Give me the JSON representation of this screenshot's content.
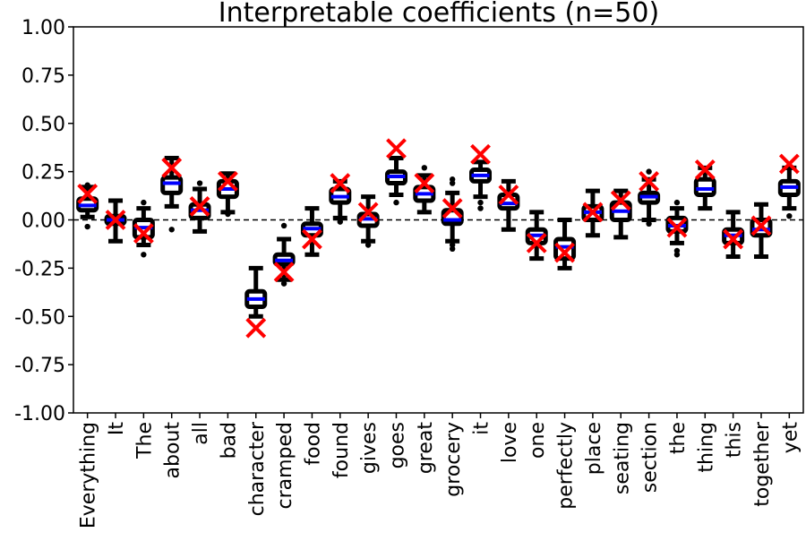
{
  "chart_data": {
    "type": "box",
    "title": "Interpretable coefficients (n=50)",
    "xlabel": "",
    "ylabel": "",
    "ylim": [
      -1.0,
      1.0
    ],
    "yticks": [
      "-1.00",
      "-0.75",
      "-0.50",
      "-0.25",
      "0.00",
      "0.25",
      "0.50",
      "0.75",
      "1.00"
    ],
    "reference_line": 0,
    "grid": false,
    "colors": {
      "box": "#000000",
      "median": "#0000ff",
      "mean": "#ffffff",
      "marker": "#ff0000",
      "reference": "#000000"
    },
    "marker_name": "red x",
    "categories": [
      "Everything",
      "It",
      "The",
      "about",
      "all",
      "bad",
      "character",
      "cramped",
      "food",
      "found",
      "gives",
      "goes",
      "great",
      "grocery",
      "it",
      "love",
      "one",
      "perfectly",
      "place",
      "seating",
      "section",
      "the",
      "thing",
      "this",
      "together",
      "yet"
    ],
    "boxes": [
      {
        "low": 0.015,
        "q1": 0.05,
        "median": 0.075,
        "q3": 0.11,
        "high": 0.17,
        "x_marker": 0.135,
        "outliers": [
          -0.035,
          0.18
        ]
      },
      {
        "low": -0.11,
        "q1": -0.02,
        "median": 0.0,
        "q3": 0.02,
        "high": 0.1,
        "x_marker": 0.0,
        "outliers": []
      },
      {
        "low": -0.13,
        "q1": -0.09,
        "median": -0.04,
        "q3": 0.0,
        "high": 0.06,
        "x_marker": -0.07,
        "outliers": [
          0.09,
          -0.18
        ]
      },
      {
        "low": 0.07,
        "q1": 0.14,
        "median": 0.19,
        "q3": 0.22,
        "high": 0.32,
        "x_marker": 0.27,
        "outliers": [
          -0.05
        ]
      },
      {
        "low": -0.06,
        "q1": 0.01,
        "median": 0.05,
        "q3": 0.08,
        "high": 0.16,
        "x_marker": 0.07,
        "outliers": [
          0.19
        ]
      },
      {
        "low": 0.04,
        "q1": 0.12,
        "median": 0.16,
        "q3": 0.2,
        "high": 0.24,
        "x_marker": 0.2,
        "outliers": [
          0.03
        ]
      },
      {
        "low": -0.5,
        "q1": -0.45,
        "median": -0.41,
        "q3": -0.37,
        "high": -0.25,
        "x_marker": -0.56,
        "outliers": []
      },
      {
        "low": -0.31,
        "q1": -0.23,
        "median": -0.21,
        "q3": -0.18,
        "high": -0.1,
        "x_marker": -0.27,
        "outliers": [
          -0.03,
          -0.33
        ]
      },
      {
        "low": -0.18,
        "q1": -0.08,
        "median": -0.045,
        "q3": -0.02,
        "high": 0.06,
        "x_marker": -0.1,
        "outliers": []
      },
      {
        "low": 0.01,
        "q1": 0.09,
        "median": 0.12,
        "q3": 0.16,
        "high": 0.2,
        "x_marker": 0.19,
        "outliers": [
          -0.01
        ]
      },
      {
        "low": -0.11,
        "q1": -0.03,
        "median": 0.005,
        "q3": 0.03,
        "high": 0.12,
        "x_marker": 0.04,
        "outliers": [
          -0.13
        ]
      },
      {
        "low": 0.13,
        "q1": 0.19,
        "median": 0.225,
        "q3": 0.25,
        "high": 0.32,
        "x_marker": 0.37,
        "outliers": [
          0.09
        ]
      },
      {
        "low": 0.04,
        "q1": 0.1,
        "median": 0.135,
        "q3": 0.17,
        "high": 0.23,
        "x_marker": 0.19,
        "outliers": [
          0.27
        ]
      },
      {
        "low": -0.11,
        "q1": -0.02,
        "median": 0.0,
        "q3": 0.05,
        "high": 0.14,
        "x_marker": 0.06,
        "outliers": [
          0.19,
          0.21,
          -0.13,
          -0.15
        ]
      },
      {
        "low": 0.12,
        "q1": 0.2,
        "median": 0.23,
        "q3": 0.26,
        "high": 0.3,
        "x_marker": 0.34,
        "outliers": [
          0.09,
          0.06
        ]
      },
      {
        "low": -0.05,
        "q1": 0.06,
        "median": 0.085,
        "q3": 0.13,
        "high": 0.2,
        "x_marker": 0.13,
        "outliers": []
      },
      {
        "low": -0.2,
        "q1": -0.12,
        "median": -0.08,
        "q3": -0.05,
        "high": 0.04,
        "x_marker": -0.12,
        "outliers": []
      },
      {
        "low": -0.25,
        "q1": -0.2,
        "median": -0.14,
        "q3": -0.1,
        "high": 0.0,
        "x_marker": -0.17,
        "outliers": []
      },
      {
        "low": -0.08,
        "q1": 0.0,
        "median": 0.04,
        "q3": 0.07,
        "high": 0.15,
        "x_marker": 0.04,
        "outliers": []
      },
      {
        "low": -0.09,
        "q1": 0.0,
        "median": 0.045,
        "q3": 0.09,
        "high": 0.15,
        "x_marker": 0.1,
        "outliers": []
      },
      {
        "low": 0.0,
        "q1": 0.09,
        "median": 0.12,
        "q3": 0.14,
        "high": 0.21,
        "x_marker": 0.2,
        "outliers": [
          0.25,
          -0.02
        ]
      },
      {
        "low": -0.12,
        "q1": -0.06,
        "median": -0.03,
        "q3": 0.01,
        "high": 0.06,
        "x_marker": -0.04,
        "outliers": [
          0.09,
          -0.16,
          -0.18
        ]
      },
      {
        "low": 0.06,
        "q1": 0.13,
        "median": 0.16,
        "q3": 0.21,
        "high": 0.27,
        "x_marker": 0.26,
        "outliers": []
      },
      {
        "low": -0.19,
        "q1": -0.12,
        "median": -0.08,
        "q3": -0.05,
        "high": 0.04,
        "x_marker": -0.1,
        "outliers": []
      },
      {
        "low": -0.19,
        "q1": -0.08,
        "median": -0.05,
        "q3": 0.0,
        "high": 0.08,
        "x_marker": -0.03,
        "outliers": []
      },
      {
        "low": 0.06,
        "q1": 0.13,
        "median": 0.17,
        "q3": 0.2,
        "high": 0.27,
        "x_marker": 0.29,
        "outliers": [
          0.02
        ]
      }
    ]
  }
}
